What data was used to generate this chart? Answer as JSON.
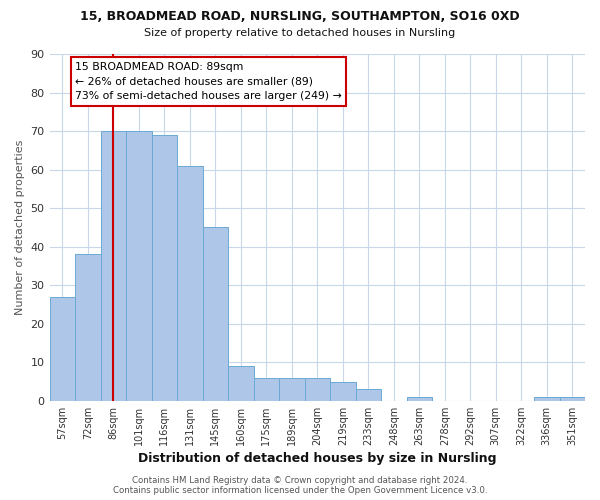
{
  "title1": "15, BROADMEAD ROAD, NURSLING, SOUTHAMPTON, SO16 0XD",
  "title2": "Size of property relative to detached houses in Nursling",
  "xlabel": "Distribution of detached houses by size in Nursling",
  "ylabel": "Number of detached properties",
  "categories": [
    "57sqm",
    "72sqm",
    "86sqm",
    "101sqm",
    "116sqm",
    "131sqm",
    "145sqm",
    "160sqm",
    "175sqm",
    "189sqm",
    "204sqm",
    "219sqm",
    "233sqm",
    "248sqm",
    "263sqm",
    "278sqm",
    "292sqm",
    "307sqm",
    "322sqm",
    "336sqm",
    "351sqm"
  ],
  "values": [
    27,
    38,
    70,
    70,
    69,
    61,
    45,
    9,
    6,
    6,
    6,
    5,
    3,
    0,
    1,
    0,
    0,
    0,
    0,
    1,
    1
  ],
  "bar_color": "#aec6e8",
  "bar_edge_color": "#6aaad4",
  "vline_x": 2,
  "vline_color": "#cc0000",
  "annotation_text": "15 BROADMEAD ROAD: 89sqm\n← 26% of detached houses are smaller (89)\n73% of semi-detached houses are larger (249) →",
  "annotation_box_color": "#ffffff",
  "annotation_box_edge_color": "#cc0000",
  "footnote": "Contains HM Land Registry data © Crown copyright and database right 2024.\nContains public sector information licensed under the Open Government Licence v3.0.",
  "ylim": [
    0,
    90
  ],
  "yticks": [
    0,
    10,
    20,
    30,
    40,
    50,
    60,
    70,
    80,
    90
  ],
  "bg_color": "#ffffff",
  "grid_color": "#c8d8e8"
}
